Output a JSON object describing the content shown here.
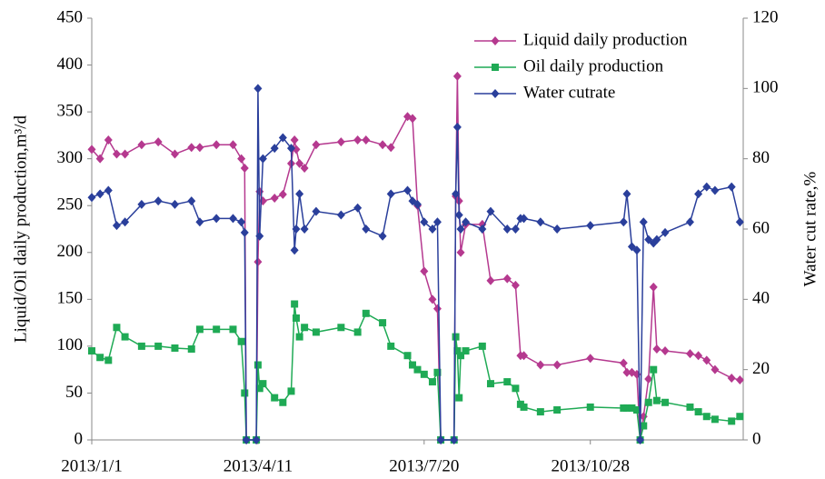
{
  "chart_data": {
    "type": "line",
    "y_label": "Liquid/Oil daily production,m³/d",
    "y2_label": "Water cut rate,%",
    "x": [
      "2013/1/1",
      "2013/1/6",
      "2013/1/11",
      "2013/1/16",
      "2013/1/21",
      "2013/1/31",
      "2013/2/10",
      "2013/2/20",
      "2013/3/2",
      "2013/3/7",
      "2013/3/17",
      "2013/3/27",
      "2013/4/1",
      "2013/4/3",
      "2013/4/4",
      "2013/4/10",
      "2013/4/11",
      "2013/4/12",
      "2013/4/14",
      "2013/4/21",
      "2013/4/26",
      "2013/5/1",
      "2013/5/3",
      "2013/5/4",
      "2013/5/6",
      "2013/5/9",
      "2013/5/16",
      "2013/5/31",
      "2013/6/10",
      "2013/6/15",
      "2013/6/25",
      "2013/6/30",
      "2013/7/10",
      "2013/7/13",
      "2013/7/16",
      "2013/7/20",
      "2013/7/25",
      "2013/7/28",
      "2013/7/30",
      "2013/8/7",
      "2013/8/8",
      "2013/8/9",
      "2013/8/10",
      "2013/8/11",
      "2013/8/14",
      "2013/8/24",
      "2013/8/29",
      "2013/9/8",
      "2013/9/13",
      "2013/9/16",
      "2013/9/18",
      "2013/9/28",
      "2013/10/8",
      "2013/10/28",
      "2013/11/17",
      "2013/11/19",
      "2013/11/22",
      "2013/11/25",
      "2013/11/27",
      "2013/11/29",
      "2013/12/2",
      "2013/12/5",
      "2013/12/7",
      "2013/12/12",
      "2013/12/27",
      "2014/1/1",
      "2014/1/6",
      "2014/1/11",
      "2014/1/21",
      "2014/1/26"
    ],
    "series": [
      {
        "name": "Liquid daily production",
        "color": "#b5398f",
        "marker": "diamond",
        "values": [
          310,
          300,
          320,
          305,
          305,
          315,
          318,
          305,
          312,
          312,
          315,
          315,
          300,
          290,
          0,
          0,
          190,
          265,
          255,
          258,
          262,
          295,
          320,
          310,
          295,
          290,
          315,
          318,
          320,
          320,
          315,
          312,
          345,
          343,
          250,
          180,
          150,
          140,
          0,
          0,
          260,
          388,
          255,
          200,
          230,
          230,
          170,
          172,
          165,
          90,
          90,
          80,
          80,
          87,
          82,
          72,
          72,
          70,
          0,
          25,
          65,
          163,
          97,
          95,
          92,
          90,
          85,
          75,
          66,
          64
        ]
      },
      {
        "name": "Oil daily production",
        "color": "#1faa55",
        "marker": "square",
        "values": [
          95,
          88,
          85,
          120,
          110,
          100,
          100,
          98,
          97,
          118,
          118,
          118,
          105,
          50,
          0,
          0,
          80,
          55,
          60,
          45,
          40,
          52,
          145,
          130,
          110,
          120,
          115,
          120,
          115,
          135,
          125,
          100,
          90,
          80,
          75,
          70,
          62,
          72,
          0,
          0,
          110,
          95,
          45,
          90,
          95,
          100,
          60,
          62,
          55,
          38,
          35,
          30,
          32,
          35,
          34,
          34,
          34,
          32,
          0,
          15,
          40,
          75,
          42,
          40,
          35,
          30,
          25,
          22,
          20,
          25
        ]
      },
      {
        "name": "Water cutrate",
        "color": "#2a3f9b",
        "marker": "diamond",
        "axis": "y2",
        "values": [
          69,
          70,
          71,
          61,
          62,
          67,
          68,
          67,
          68,
          62,
          63,
          63,
          62,
          59,
          0,
          0,
          100,
          58,
          80,
          83,
          86,
          83,
          54,
          60,
          70,
          60,
          65,
          64,
          66,
          60,
          58,
          70,
          71,
          68,
          67,
          62,
          60,
          62,
          0,
          0,
          70,
          89,
          64,
          60,
          62,
          60,
          65,
          60,
          60,
          63,
          63,
          62,
          60,
          61,
          62,
          70,
          55,
          54,
          0,
          62,
          57,
          56,
          57,
          59,
          62,
          70,
          72,
          71,
          72,
          62
        ]
      }
    ],
    "xlim": [
      "2013/1/1",
      "2014/1/28"
    ],
    "xticks": [
      "2013/1/1",
      "2013/4/11",
      "2013/7/20",
      "2013/10/28"
    ],
    "ylim": [
      0,
      450
    ],
    "yticks": [
      0,
      50,
      100,
      150,
      200,
      250,
      300,
      350,
      400,
      450
    ],
    "y2lim": [
      0,
      120
    ],
    "y2ticks": [
      0,
      20,
      40,
      60,
      80,
      100,
      120
    ],
    "legend": "upper right"
  }
}
